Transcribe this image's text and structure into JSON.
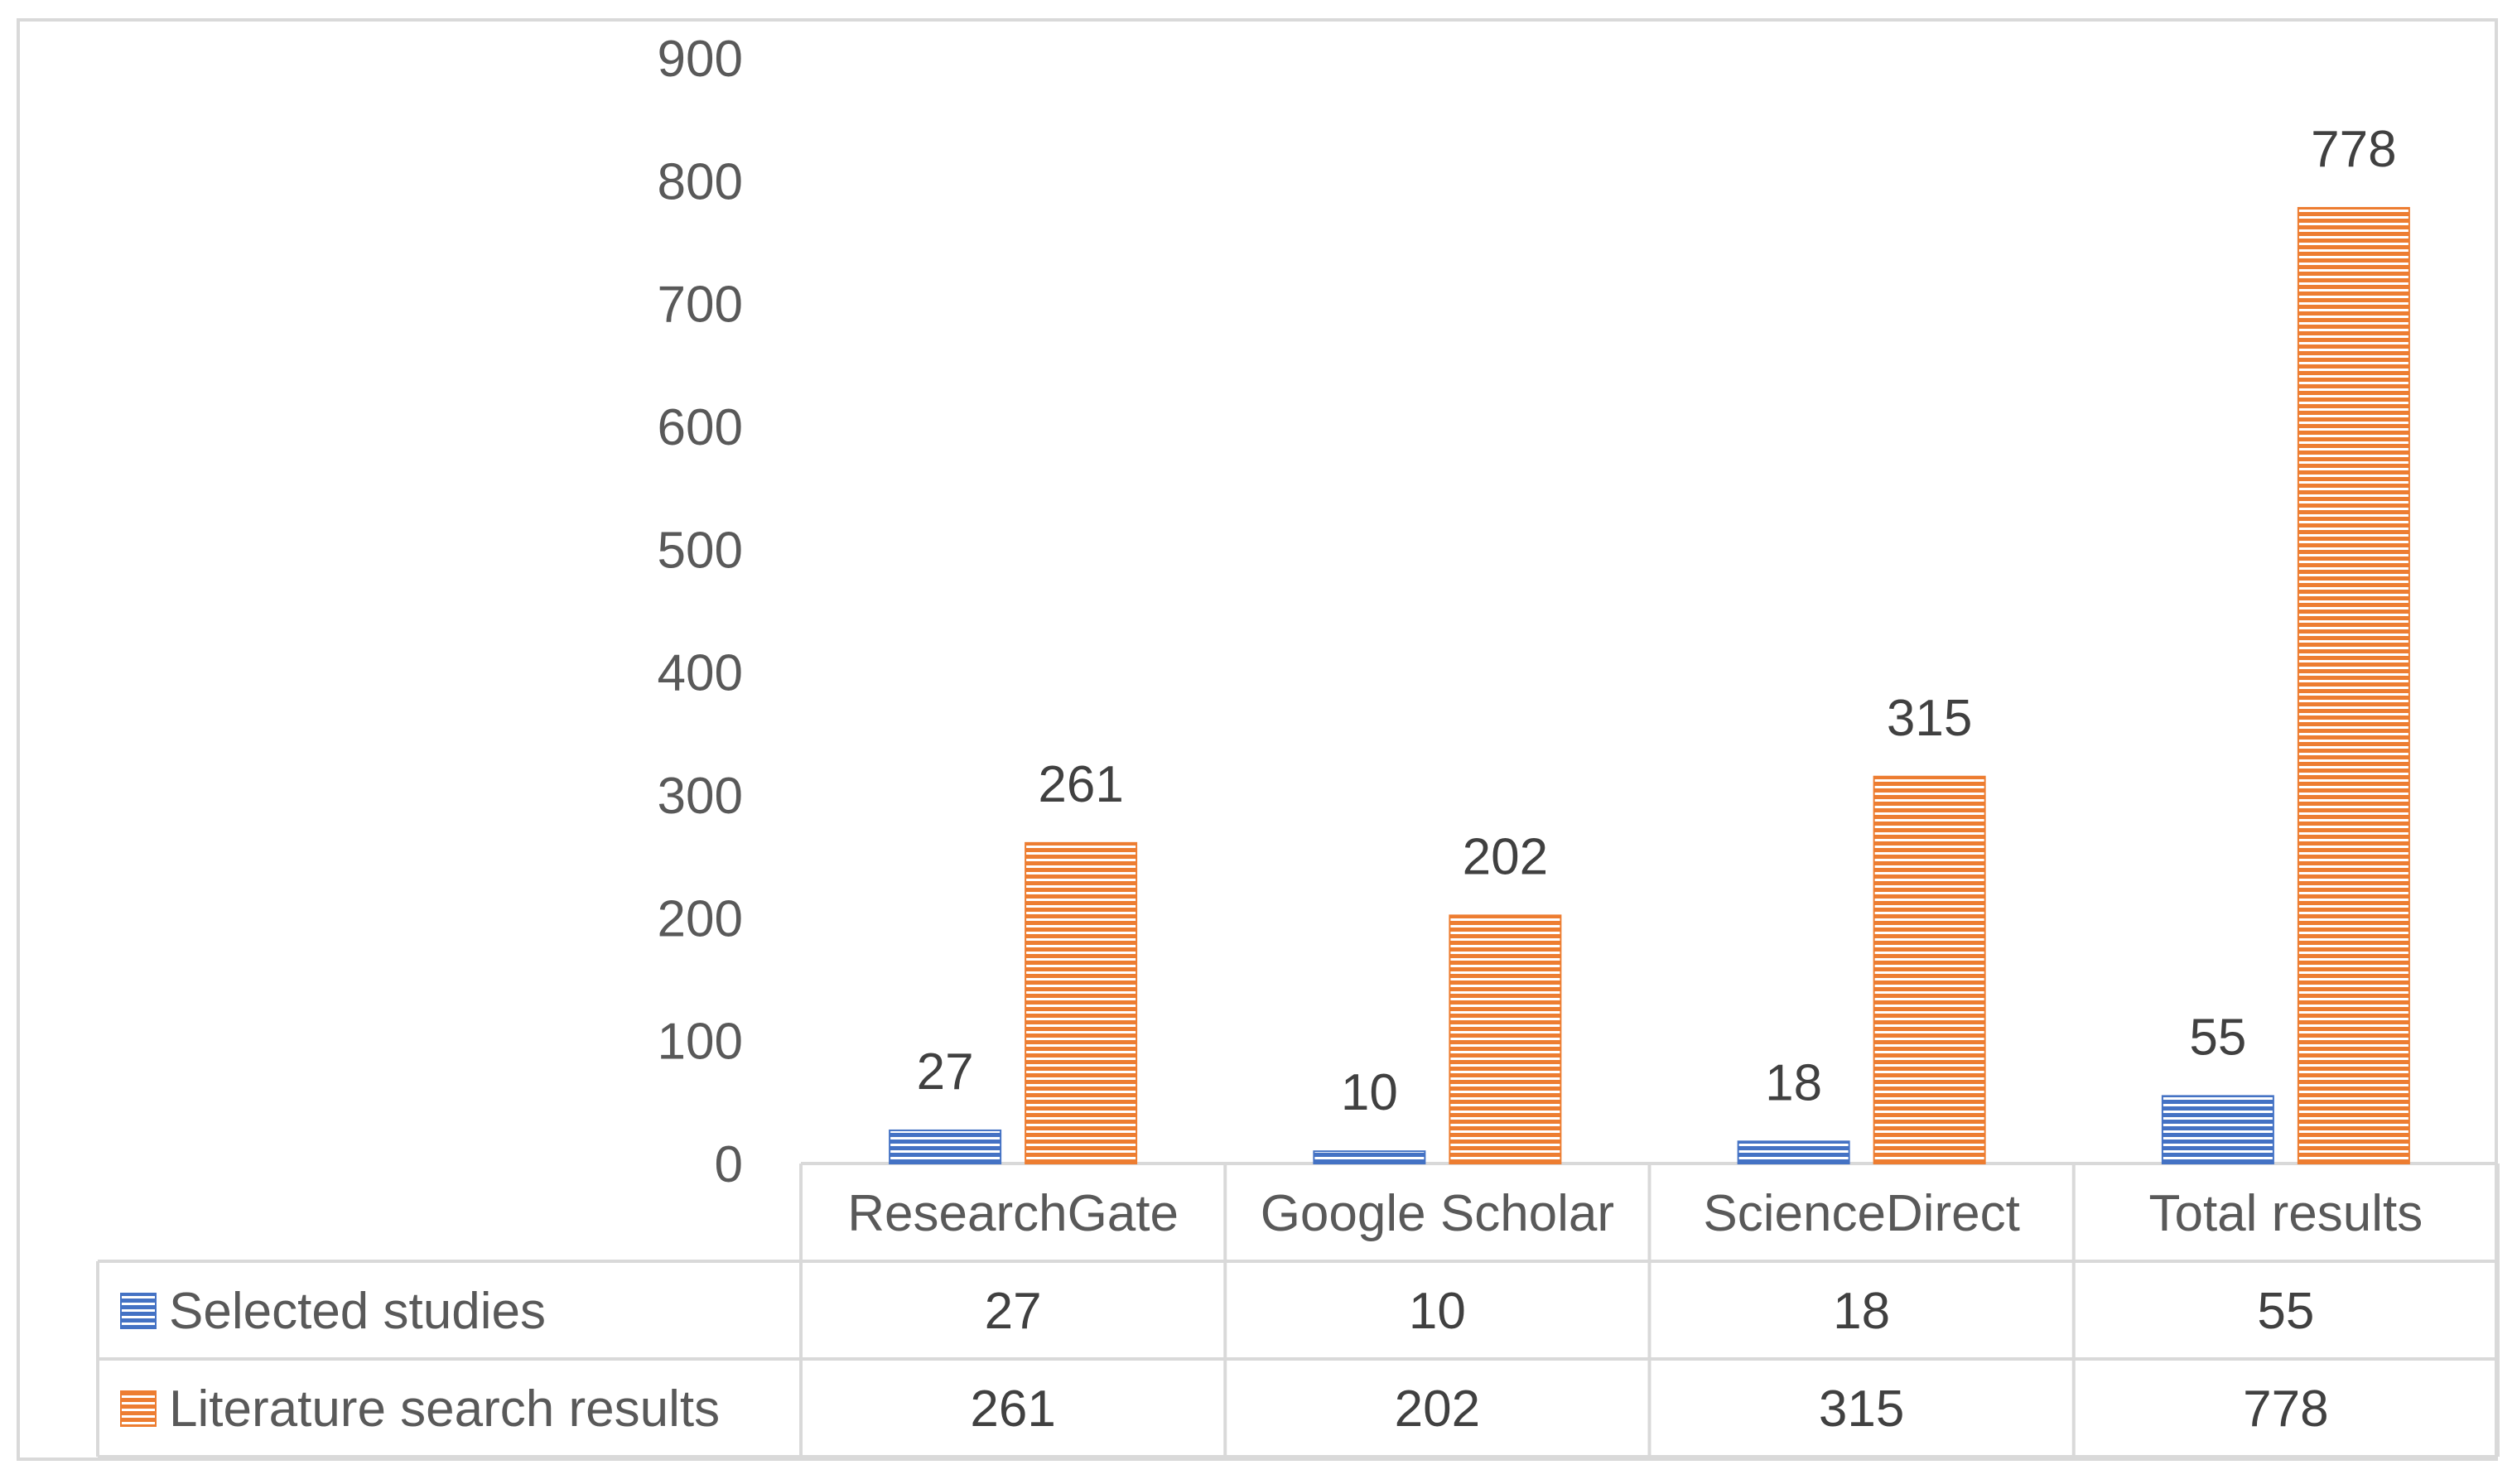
{
  "chart_data": {
    "type": "bar",
    "title": "",
    "xlabel": "",
    "ylabel": "",
    "categories": [
      "ResearchGate",
      "Google Scholar",
      "ScienceDirect",
      "Total results"
    ],
    "series": [
      {
        "name": "Selected studies",
        "values": [
          27,
          10,
          18,
          55
        ],
        "color": "#4472c4",
        "pattern": "horizontal-stripes"
      },
      {
        "name": "Literature search results",
        "values": [
          261,
          202,
          315,
          778
        ],
        "color": "#ed7d31",
        "pattern": "horizontal-stripes"
      }
    ],
    "ylim": [
      0,
      900
    ],
    "yticks": [
      "0",
      "100",
      "200",
      "300",
      "400",
      "500",
      "600",
      "700",
      "800",
      "900"
    ],
    "data_labels": true,
    "grid": false,
    "legend": "data-table-below",
    "data_table": true,
    "colors": {
      "axis_text": "#595959",
      "table_border": "#d9d9d9",
      "frame": "#d9d9d9"
    }
  }
}
